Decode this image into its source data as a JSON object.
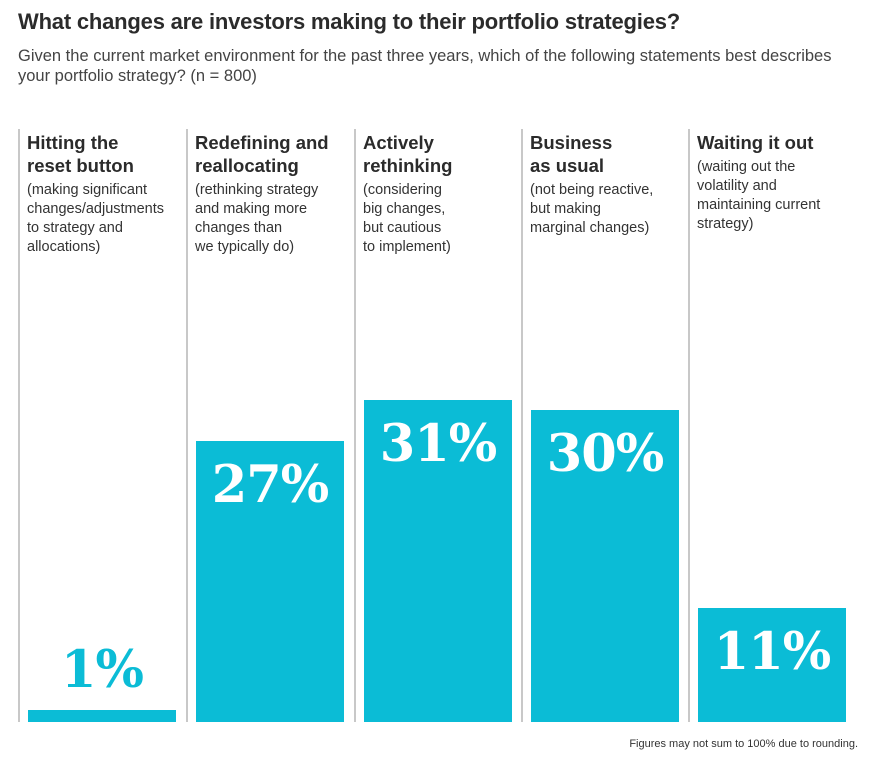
{
  "title": "What changes are investors making to their portfolio strategies?",
  "subtitle": "Given the current market environment for the past three years, which of the following statements best describes your portfolio strategy? (n = 800)",
  "footnote": "Figures may not sum to 100% due to rounding.",
  "colors": {
    "bar": "#0bbcd6",
    "divider": "#c8c8c8"
  },
  "chart_data": {
    "type": "bar",
    "categories": [
      "Hitting the reset button",
      "Redefining and reallocating",
      "Actively rethinking",
      "Business as usual",
      "Waiting it out"
    ],
    "values": [
      1,
      27,
      31,
      30,
      11
    ],
    "value_labels": [
      "1%",
      "27%",
      "31%",
      "30%",
      "11%"
    ],
    "unit": "%",
    "columns": [
      {
        "head": [
          "Hitting the",
          "reset button"
        ],
        "desc": [
          "(making significant",
          "changes/adjustments",
          "to strategy and",
          "allocations)"
        ]
      },
      {
        "head": [
          "Redefining and",
          "reallocating"
        ],
        "desc": [
          "(rethinking strategy",
          "and making more",
          "changes than",
          "we typically do)"
        ]
      },
      {
        "head": [
          "Actively",
          "rethinking"
        ],
        "desc": [
          "(considering",
          "big changes,",
          "but cautious",
          "to implement)"
        ]
      },
      {
        "head": [
          "Business",
          "as usual"
        ],
        "desc": [
          "(not being reactive,",
          "but making",
          "marginal changes)"
        ]
      },
      {
        "head": [
          "Waiting it out"
        ],
        "desc": [
          "(waiting out the",
          "volatility and",
          "maintaining current",
          "strategy)"
        ]
      }
    ],
    "ylim": [
      0,
      35
    ],
    "grid": false,
    "legend": "none"
  }
}
